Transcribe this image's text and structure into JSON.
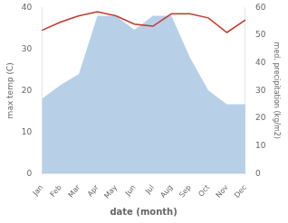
{
  "chart_data": {
    "type": "line",
    "xlabel": "date (month)",
    "ylabel": "max temp (C)",
    "y2label": "med. precipitation (kg/m2)",
    "categories": [
      "Jan",
      "Feb",
      "Mar",
      "Apr",
      "May",
      "Jun",
      "Jul",
      "Aug",
      "Sep",
      "Oct",
      "Nov",
      "Dec"
    ],
    "series": [
      {
        "type": "area",
        "color": "#b8cfe8",
        "axis": "y2",
        "values": [
          27,
          32,
          36,
          57,
          57,
          52,
          57,
          57,
          42,
          30,
          25,
          25
        ]
      },
      {
        "type": "line",
        "color": "#c0392b",
        "values": [
          34.5,
          36.5,
          38.0,
          39.0,
          38.0,
          36.0,
          35.5,
          38.5,
          38.5,
          37.5,
          34.0,
          37.0
        ]
      }
    ],
    "ylim": [
      0,
      40
    ],
    "yticks": [
      0,
      10,
      20,
      30,
      40
    ],
    "y2lim": [
      0,
      60
    ],
    "y2ticks": [
      0,
      10,
      20,
      30,
      40,
      50,
      60
    ],
    "grid": false
  }
}
